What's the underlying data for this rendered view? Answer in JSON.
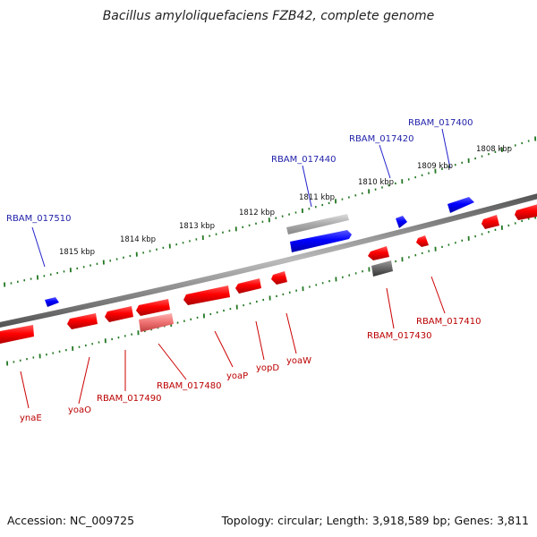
{
  "title": "Bacillus amyloliquefaciens FZB42, complete genome",
  "footer": {
    "accession": "Accession: NC_009725",
    "summary": "Topology: circular; Length: 3,918,589 bp; Genes: 3,811"
  },
  "colors": {
    "forward_strand": "#0000ee",
    "reverse_strand": "#ee0000",
    "backbone": "#777777",
    "ticks": "#227722",
    "label_forward": "#2222aa",
    "label_reverse": "#bb0000"
  },
  "scale_labels": [
    "1808 kbp",
    "1809 kbp",
    "1810 kbp",
    "1811 kbp",
    "1812 kbp",
    "1813 kbp",
    "1814 kbp",
    "1815 kbp"
  ],
  "forward_gene_labels": [
    "RBAM_017400",
    "RBAM_017420",
    "RBAM_017440",
    "RBAM_017510"
  ],
  "reverse_gene_labels": [
    "RBAM_017410",
    "RBAM_017430",
    "yoaW",
    "yopD",
    "yoaP",
    "RBAM_017480",
    "RBAM_017490",
    "yoaO",
    "ynaE"
  ]
}
